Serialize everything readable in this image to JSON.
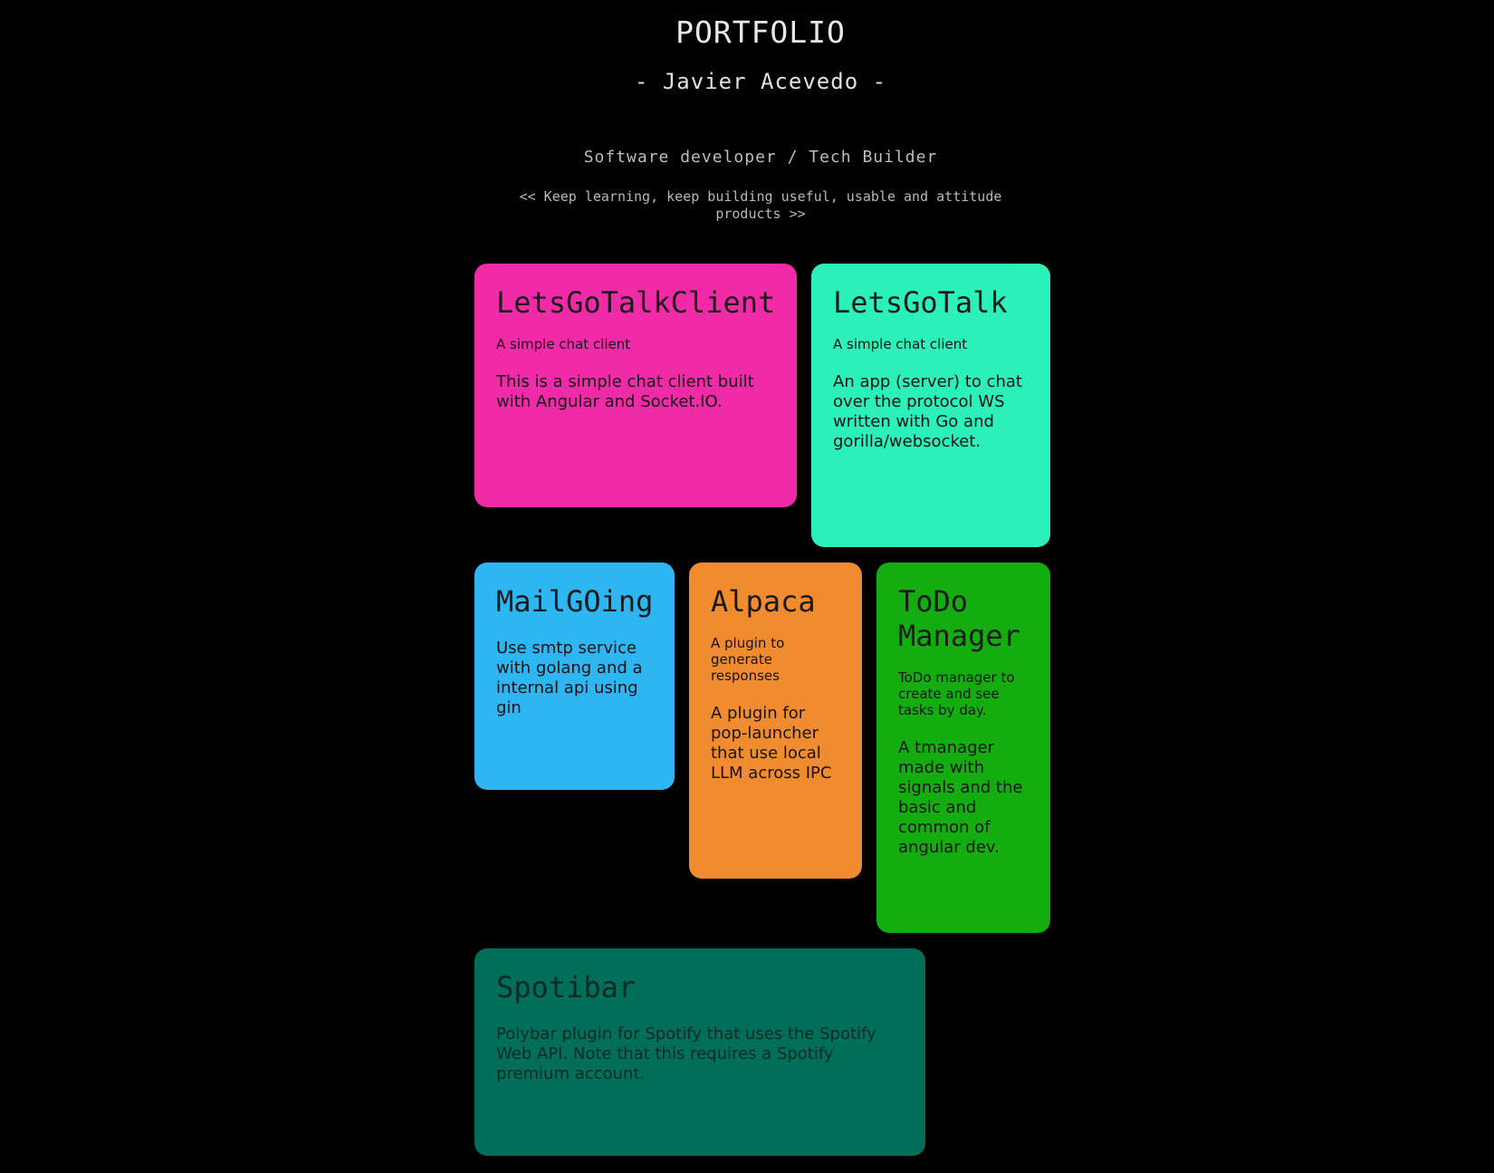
{
  "header": {
    "title": "PORTFOLIO",
    "name": "- Javier Acevedo -",
    "role": "Software developer / Tech Builder",
    "motto": "<< Keep learning, keep building useful, usable and attitude products >>"
  },
  "projects": [
    {
      "title": "LetsGoTalkClient",
      "short": "A simple chat client",
      "description": "This is a simple chat client built with Angular and Socket.IO.",
      "color": "#f12ba8"
    },
    {
      "title": "LetsGoTalk",
      "short": "A simple chat client",
      "description": "An app (server) to chat over the protocol WS written with Go and gorilla/websocket.",
      "color": "#2cf0b9"
    },
    {
      "title": "MailGOing",
      "short": "",
      "description": "Use smtp service with golang and a internal api using gin",
      "color": "#2db6f1"
    },
    {
      "title": "Alpaca",
      "short": "A plugin to generate responses",
      "description": "A plugin for pop-launcher that use local LLM across IPC",
      "color": "#f18b2f"
    },
    {
      "title": "ToDo Manager",
      "short": "ToDo manager to create and see tasks by day.",
      "description": "A tmanager made with signals and the basic and common of angular dev.",
      "color": "#13ad0f"
    },
    {
      "title": "Spotibar",
      "short": "",
      "description": "Polybar plugin for Spotify that uses the Spotify Web API. Note that this requires a Spotify premium account.",
      "color": "#006e58"
    }
  ]
}
